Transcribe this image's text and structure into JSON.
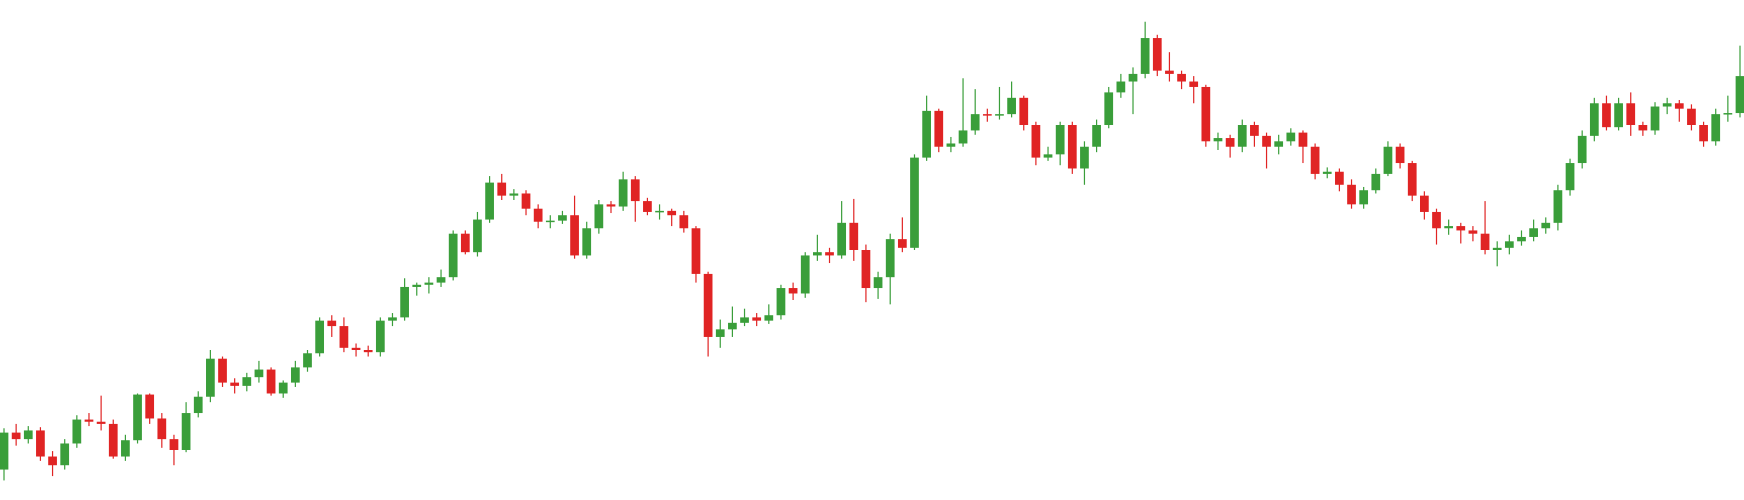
{
  "chart_data": {
    "type": "candlestick",
    "up_color": "#3a9e3a",
    "down_color": "#e02424",
    "ylim": [
      0,
      460
    ],
    "open": [
      28,
      62,
      56,
      64,
      40,
      32,
      52,
      74,
      72,
      70,
      40,
      55,
      97,
      75,
      56,
      46,
      80,
      95,
      130,
      108,
      105,
      113,
      120,
      98,
      108,
      122,
      135,
      165,
      160,
      140,
      138,
      136,
      165,
      168,
      196,
      198,
      200,
      205,
      245,
      228,
      258,
      292,
      280,
      282,
      268,
      256,
      257,
      262,
      225,
      250,
      272,
      270,
      295,
      275,
      265,
      266,
      262,
      250,
      208,
      150,
      157,
      163,
      168,
      165,
      170,
      195,
      190,
      225,
      228,
      225,
      255,
      230,
      195,
      205,
      240,
      232,
      315,
      358,
      325,
      328,
      340,
      355,
      354,
      355,
      370,
      345,
      315,
      318,
      345,
      305,
      325,
      345,
      375,
      385,
      392,
      425,
      395,
      392,
      385,
      380,
      330,
      333,
      325,
      345,
      335,
      325,
      330,
      338,
      325,
      300,
      302,
      290,
      272,
      285,
      300,
      325,
      310,
      280,
      265,
      250,
      252,
      248,
      245,
      230,
      232,
      238,
      242,
      250,
      255,
      285,
      310,
      335,
      365,
      343,
      365,
      345,
      340,
      362,
      365,
      360,
      345,
      330,
      355,
      356
    ],
    "high": [
      66,
      70,
      68,
      67,
      45,
      56,
      78,
      80,
      96,
      74,
      60,
      98,
      98,
      80,
      60,
      90,
      100,
      138,
      132,
      112,
      117,
      128,
      122,
      110,
      128,
      138,
      168,
      170,
      168,
      144,
      142,
      168,
      172,
      204,
      200,
      205,
      212,
      248,
      248,
      265,
      298,
      300,
      286,
      285,
      272,
      262,
      266,
      280,
      256,
      276,
      275,
      302,
      298,
      278,
      272,
      268,
      266,
      252,
      210,
      166,
      178,
      176,
      172,
      180,
      198,
      200,
      228,
      244,
      232,
      275,
      277,
      235,
      210,
      245,
      260,
      318,
      372,
      360,
      334,
      388,
      378,
      360,
      380,
      385,
      372,
      348,
      325,
      348,
      348,
      330,
      350,
      380,
      392,
      398,
      440,
      428,
      412,
      395,
      390,
      382,
      338,
      336,
      350,
      348,
      338,
      336,
      342,
      340,
      328,
      306,
      305,
      295,
      288,
      305,
      330,
      328,
      312,
      284,
      268,
      258,
      255,
      252,
      275,
      238,
      244,
      248,
      258,
      260,
      290,
      314,
      340,
      370,
      372,
      370,
      375,
      348,
      366,
      370,
      368,
      364,
      348,
      360,
      372,
      418
    ],
    "low": [
      18,
      50,
      52,
      36,
      22,
      28,
      48,
      68,
      64,
      38,
      36,
      52,
      70,
      48,
      32,
      44,
      76,
      90,
      104,
      98,
      100,
      108,
      96,
      94,
      104,
      118,
      132,
      150,
      136,
      132,
      132,
      132,
      160,
      165,
      188,
      190,
      196,
      202,
      226,
      224,
      255,
      276,
      276,
      262,
      250,
      250,
      254,
      222,
      222,
      245,
      264,
      266,
      256,
      262,
      258,
      252,
      246,
      200,
      132,
      140,
      150,
      160,
      160,
      162,
      166,
      184,
      186,
      220,
      218,
      222,
      220,
      182,
      185,
      180,
      228,
      230,
      312,
      320,
      320,
      325,
      336,
      348,
      350,
      352,
      340,
      308,
      312,
      308,
      300,
      290,
      320,
      342,
      370,
      355,
      388,
      390,
      385,
      378,
      365,
      325,
      322,
      315,
      320,
      325,
      305,
      318,
      326,
      310,
      295,
      296,
      284,
      268,
      268,
      282,
      298,
      305,
      275,
      258,
      235,
      244,
      236,
      238,
      226,
      215,
      226,
      234,
      238,
      245,
      248,
      280,
      305,
      330,
      340,
      340,
      335,
      335,
      336,
      355,
      348,
      340,
      325,
      326,
      348,
      352
    ],
    "close": [
      62,
      56,
      64,
      40,
      32,
      52,
      74,
      72,
      70,
      40,
      55,
      97,
      75,
      56,
      46,
      80,
      95,
      130,
      108,
      105,
      113,
      120,
      98,
      108,
      122,
      135,
      165,
      160,
      140,
      138,
      136,
      165,
      168,
      196,
      198,
      200,
      205,
      245,
      228,
      258,
      292,
      280,
      282,
      268,
      256,
      257,
      262,
      225,
      250,
      272,
      270,
      295,
      275,
      265,
      266,
      262,
      250,
      208,
      150,
      157,
      163,
      168,
      165,
      170,
      195,
      190,
      225,
      228,
      225,
      255,
      230,
      195,
      205,
      240,
      232,
      315,
      358,
      325,
      328,
      340,
      355,
      354,
      355,
      370,
      345,
      315,
      318,
      345,
      305,
      325,
      345,
      375,
      385,
      392,
      425,
      395,
      392,
      385,
      380,
      330,
      333,
      325,
      345,
      335,
      325,
      330,
      338,
      325,
      300,
      302,
      290,
      272,
      285,
      300,
      325,
      310,
      280,
      265,
      250,
      252,
      248,
      245,
      230,
      232,
      238,
      242,
      250,
      255,
      285,
      310,
      335,
      365,
      343,
      365,
      345,
      340,
      362,
      365,
      360,
      345,
      330,
      355,
      356,
      390
    ]
  }
}
